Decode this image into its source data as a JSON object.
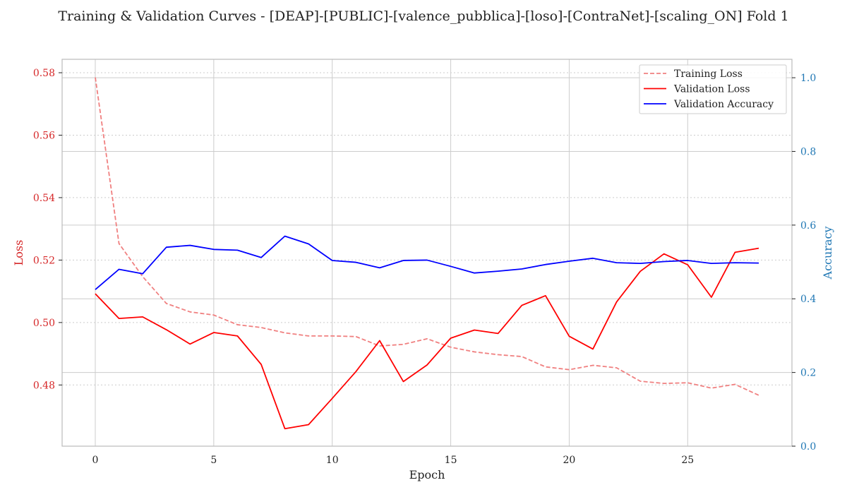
{
  "chart_data": {
    "type": "line",
    "title": "Training & Validation Curves - [DEAP]-[PUBLIC]-[valence_pubblica]-[loso]-[ContraNet]-[scaling_ON] Fold 1",
    "xlabel": "Epoch",
    "ylabel_left": "Loss",
    "ylabel_right": "Accuracy",
    "xlim": [
      -1.4,
      29.4
    ],
    "ylim_left": [
      0.4604,
      0.5843
    ],
    "ylim_right": [
      0.0,
      1.05
    ],
    "x_ticks": [
      0,
      5,
      10,
      15,
      20,
      25
    ],
    "y_ticks_left": [
      0.48,
      0.5,
      0.52,
      0.54,
      0.56,
      0.58
    ],
    "y_ticks_right": [
      0.0,
      0.2,
      0.4,
      0.6,
      0.8,
      1.0
    ],
    "x_tick_labels": [
      "0",
      "5",
      "10",
      "15",
      "20",
      "25"
    ],
    "y_tick_labels_left": [
      "0.48",
      "0.50",
      "0.52",
      "0.54",
      "0.56",
      "0.58"
    ],
    "y_tick_labels_right": [
      "0.0",
      "0.2",
      "0.4",
      "0.6",
      "0.8",
      "1.0"
    ],
    "x": [
      0,
      1,
      2,
      3,
      4,
      5,
      6,
      7,
      8,
      9,
      10,
      11,
      12,
      13,
      14,
      15,
      16,
      17,
      18,
      19,
      20,
      21,
      22,
      23,
      24,
      25,
      26,
      27,
      28
    ],
    "series": [
      {
        "name": "Training Loss",
        "axis": "left",
        "color": "#f08080",
        "dashed": true,
        "values": [
          0.5785,
          0.5253,
          0.5147,
          0.5061,
          0.5034,
          0.5024,
          0.4993,
          0.4984,
          0.4967,
          0.4957,
          0.4957,
          0.4955,
          0.4925,
          0.493,
          0.4948,
          0.4921,
          0.4906,
          0.4897,
          0.4891,
          0.4858,
          0.4849,
          0.4863,
          0.4855,
          0.4812,
          0.4805,
          0.4807,
          0.479,
          0.4802,
          0.4767
        ]
      },
      {
        "name": "Validation Loss",
        "axis": "left",
        "color": "#ff0000",
        "dashed": false,
        "values": [
          0.5092,
          0.5013,
          0.5018,
          0.4977,
          0.4931,
          0.4968,
          0.4957,
          0.4866,
          0.466,
          0.4673,
          0.4757,
          0.4843,
          0.4942,
          0.4811,
          0.4864,
          0.495,
          0.4976,
          0.4965,
          0.5055,
          0.5086,
          0.4956,
          0.4915,
          0.5066,
          0.5164,
          0.522,
          0.5185,
          0.5081,
          0.5225,
          0.5238
        ]
      },
      {
        "name": "Validation Accuracy",
        "axis": "right",
        "color": "#0000ff",
        "dashed": false,
        "values": [
          0.425,
          0.48,
          0.468,
          0.54,
          0.545,
          0.534,
          0.532,
          0.512,
          0.57,
          0.549,
          0.504,
          0.499,
          0.484,
          0.504,
          0.505,
          0.488,
          0.47,
          0.475,
          0.481,
          0.493,
          0.502,
          0.51,
          0.498,
          0.496,
          0.501,
          0.504,
          0.496,
          0.498,
          0.497
        ]
      }
    ],
    "legend_position": "top-right",
    "grid": true,
    "colors": {
      "left_axis": "#d62728",
      "right_axis": "#1f77b4",
      "axis_text": "#222222",
      "grid": "#cccccc",
      "frame": "#bbbbbb"
    }
  }
}
